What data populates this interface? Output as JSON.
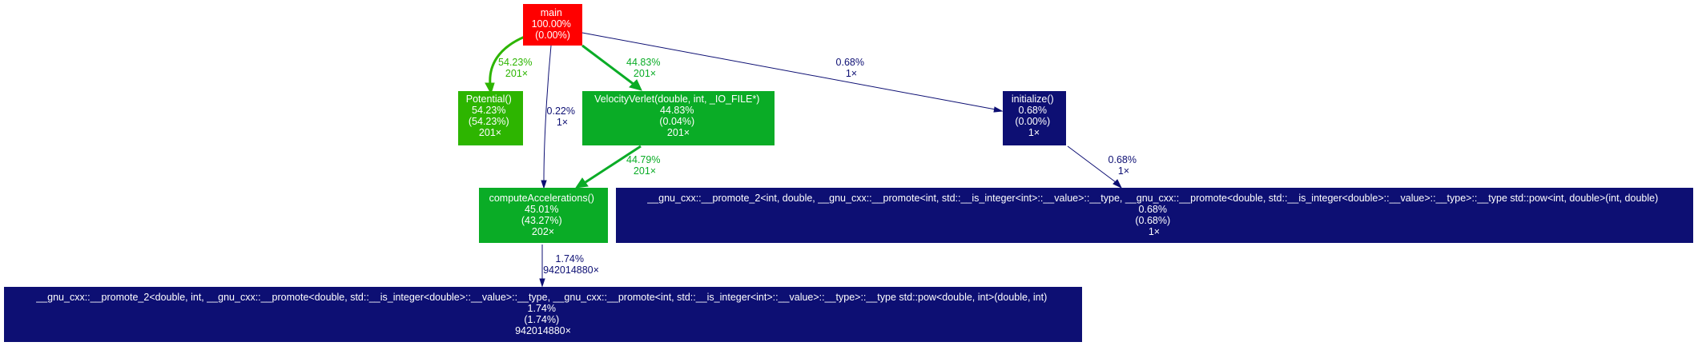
{
  "nodes": {
    "main": {
      "lines": [
        "main",
        "100.00%",
        "(0.00%)"
      ],
      "color": "#ff0000"
    },
    "potential": {
      "lines": [
        "Potential()",
        "54.23%",
        "(54.23%)",
        "201×"
      ],
      "color": "#2db500"
    },
    "velocity_verlet": {
      "lines": [
        "VelocityVerlet(double, int, _IO_FILE*)",
        "44.83%",
        "(0.04%)",
        "201×"
      ],
      "color": "#0aac26"
    },
    "initialize": {
      "lines": [
        "initialize()",
        "0.68%",
        "(0.00%)",
        "1×"
      ],
      "color": "#0d0f73"
    },
    "compute_accelerations": {
      "lines": [
        "computeAccelerations()",
        "45.01%",
        "(43.27%)",
        "202×"
      ],
      "color": "#0aac26"
    },
    "pow_int_double": {
      "lines": [
        "__gnu_cxx::__promote_2<int, double, __gnu_cxx::__promote<int, std::__is_integer<int>::__value>::__type, __gnu_cxx::__promote<double, std::__is_integer<double>::__value>::__type>::__type std::pow<int, double>(int, double)",
        "0.68%",
        "(0.68%)",
        "1×"
      ],
      "color": "#0d0f73"
    },
    "pow_double_int": {
      "lines": [
        "__gnu_cxx::__promote_2<double, int, __gnu_cxx::__promote<double, std::__is_integer<double>::__value>::__type, __gnu_cxx::__promote<int, std::__is_integer<int>::__value>::__type>::__type std::pow<double, int>(double, int)",
        "1.74%",
        "(1.74%)",
        "942014880×"
      ],
      "color": "#0d0f73"
    }
  },
  "edges": {
    "main_potential": {
      "lines": [
        "54.23%",
        "201×"
      ],
      "color": "#2db500"
    },
    "main_velocity": {
      "lines": [
        "44.83%",
        "201×"
      ],
      "color": "#0aac26"
    },
    "main_initialize": {
      "lines": [
        "0.68%",
        "1×"
      ],
      "color": "#0d0f73"
    },
    "main_compute": {
      "lines": [
        "0.22%",
        "1×"
      ],
      "color": "#0d0f73"
    },
    "velocity_compute": {
      "lines": [
        "44.79%",
        "201×"
      ],
      "color": "#0aac26"
    },
    "initialize_pow": {
      "lines": [
        "0.68%",
        "1×"
      ],
      "color": "#0d0f73"
    },
    "compute_pow": {
      "lines": [
        "1.74%",
        "942014880×"
      ],
      "color": "#0d0f73"
    }
  }
}
